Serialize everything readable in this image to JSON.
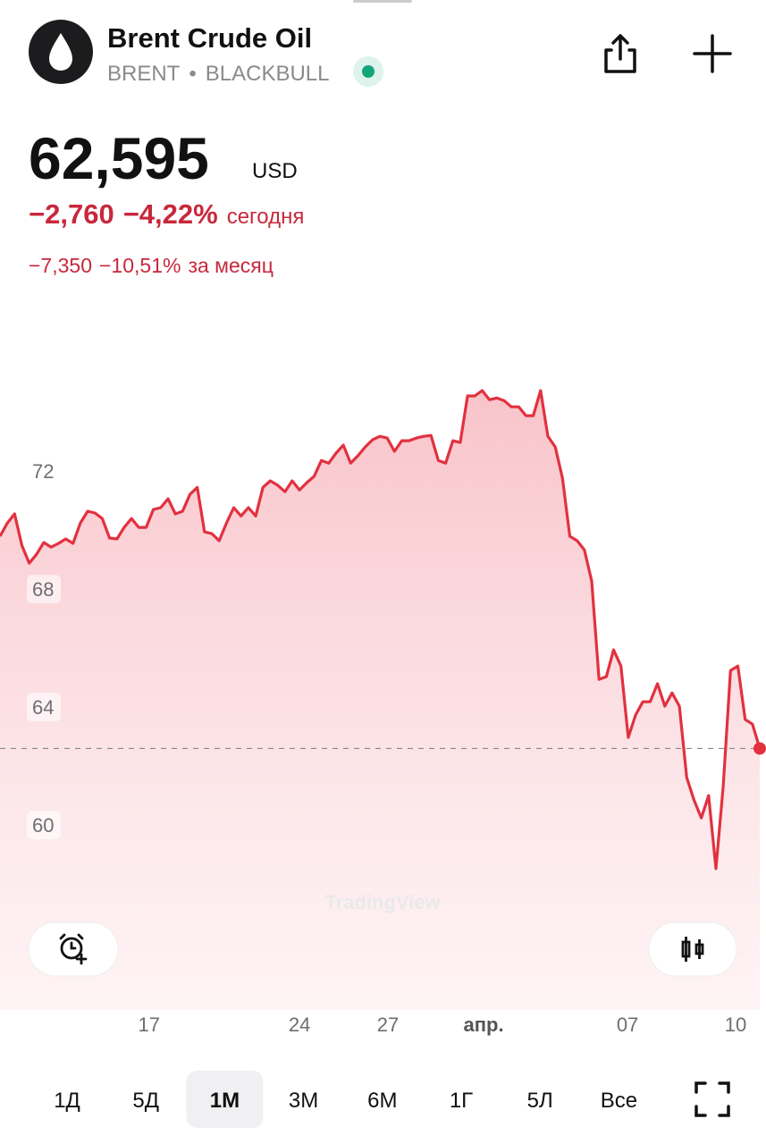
{
  "header": {
    "title": "Brent Crude Oil",
    "symbol": "BRENT",
    "exchange": "BLACKBULL"
  },
  "quote": {
    "price": "62,595",
    "currency": "USD",
    "day_change": "−2,760",
    "day_change_pct": "−4,22%",
    "day_label": "сегодня",
    "month_change": "−7,350",
    "month_change_pct": "−10,51%",
    "month_label": "за месяц"
  },
  "chart_data": {
    "type": "area",
    "color": "#e2313f",
    "values": [
      69.79,
      70.24,
      70.55,
      69.48,
      68.88,
      69.18,
      69.58,
      69.42,
      69.55,
      69.7,
      69.55,
      70.24,
      70.64,
      70.58,
      70.39,
      69.73,
      69.7,
      70.09,
      70.39,
      70.09,
      70.09,
      70.7,
      70.76,
      71.06,
      70.55,
      70.64,
      71.21,
      71.45,
      69.94,
      69.88,
      69.64,
      70.24,
      70.76,
      70.48,
      70.76,
      70.48,
      71.45,
      71.67,
      71.52,
      71.3,
      71.67,
      71.36,
      71.61,
      71.82,
      72.36,
      72.27,
      72.61,
      72.88,
      72.27,
      72.52,
      72.82,
      73.06,
      73.18,
      73.12,
      72.67,
      73.03,
      73.03,
      73.12,
      73.18,
      73.21,
      72.36,
      72.27,
      73.03,
      72.97,
      74.55,
      74.55,
      74.73,
      74.42,
      74.48,
      74.39,
      74.18,
      74.18,
      73.88,
      73.88,
      74.73,
      73.18,
      72.82,
      71.76,
      69.79,
      69.64,
      69.33,
      68.27,
      64.94,
      65.03,
      65.94,
      65.39,
      62.97,
      63.73,
      64.18,
      64.18,
      64.79,
      64.03,
      64.48,
      64.03,
      61.61,
      60.85,
      60.24,
      61.0,
      58.52,
      61.3,
      65.24,
      65.39,
      63.58,
      63.42,
      62.595
    ],
    "ylim": [
      53.73,
      77.67
    ],
    "yticks": [
      60,
      64,
      68,
      72
    ],
    "xlim": [
      0,
      104
    ],
    "xticks": [
      {
        "value": 20.4,
        "label": "17"
      },
      {
        "value": 41,
        "label": "24"
      },
      {
        "value": 53.1,
        "label": "27"
      },
      {
        "value": 66.2,
        "label": "апр."
      },
      {
        "value": 85.9,
        "label": "07"
      },
      {
        "value": 100.7,
        "label": "10"
      }
    ],
    "watermark": "TradingView"
  },
  "ranges": {
    "items": [
      "1Д",
      "5Д",
      "1М",
      "3М",
      "6М",
      "1Г",
      "5Л",
      "Все"
    ],
    "selected": "1М"
  }
}
